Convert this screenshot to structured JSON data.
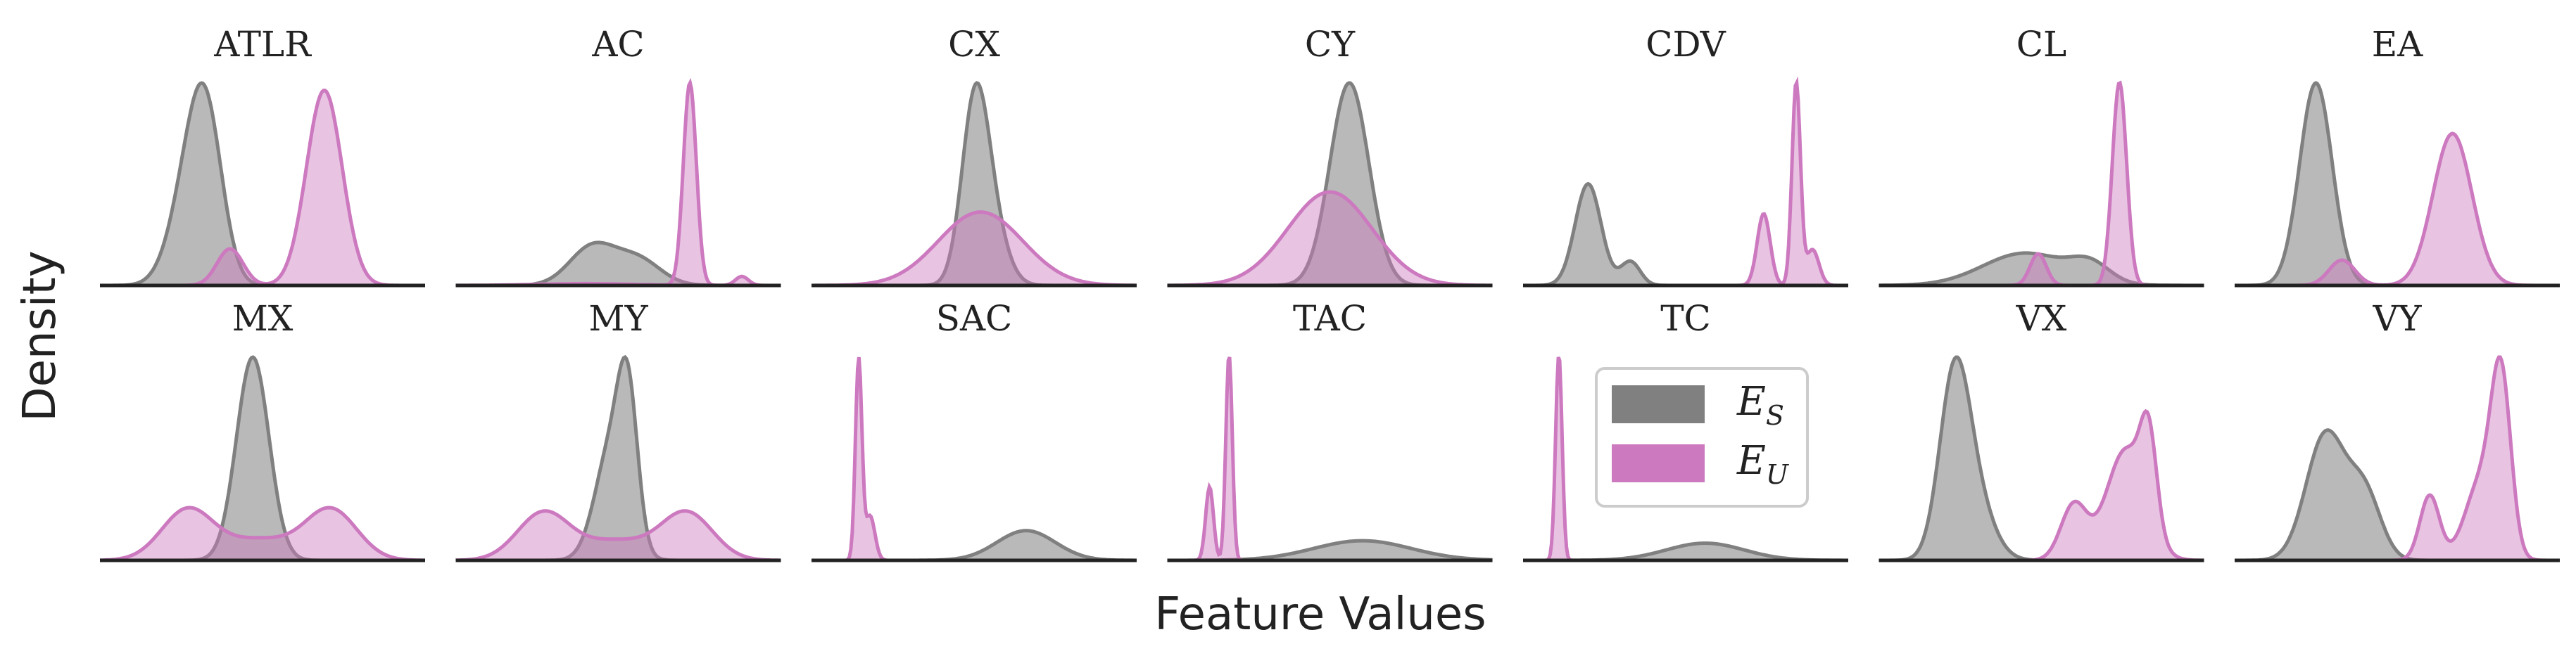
{
  "chart_data": {
    "type": "area",
    "xlabel": "Feature Values",
    "ylabel": "Density",
    "grid": false,
    "legend_placement": "inside panel TC, upper-right",
    "legend": [
      {
        "key": "S",
        "base": "E",
        "sub": "S",
        "color": "#808080"
      },
      {
        "key": "U",
        "base": "E",
        "sub": "U",
        "color": "#cc79bf"
      }
    ],
    "x_domain": [
      0,
      1
    ],
    "panels": [
      {
        "title": "ATLR",
        "S": [
          {
            "mu": 0.28,
            "sd": 0.06,
            "w": 0.5
          },
          {
            "mu": 0.33,
            "sd": 0.05,
            "w": 0.5
          }
        ],
        "U": [
          {
            "mu": 0.4,
            "sd": 0.04,
            "w": 0.12
          },
          {
            "mu": 0.69,
            "sd": 0.055,
            "w": 0.88
          }
        ]
      },
      {
        "title": "AC",
        "S": [
          {
            "mu": 0.42,
            "sd": 0.07,
            "w": 0.6
          },
          {
            "mu": 0.56,
            "sd": 0.07,
            "w": 0.4
          }
        ],
        "U": [
          {
            "mu": 0.72,
            "sd": 0.02,
            "w": 0.9
          },
          {
            "mu": 0.88,
            "sd": 0.02,
            "w": 0.04
          },
          {
            "mu": 0.4,
            "sd": 0.15,
            "w": 0.06
          }
        ]
      },
      {
        "title": "CX",
        "S": [
          {
            "mu": 0.5,
            "sd": 0.04,
            "w": 0.6
          },
          {
            "mu": 0.54,
            "sd": 0.05,
            "w": 0.4
          }
        ],
        "U": [
          {
            "mu": 0.52,
            "sd": 0.13,
            "w": 1.0
          }
        ]
      },
      {
        "title": "CY",
        "S": [
          {
            "mu": 0.56,
            "sd": 0.06,
            "w": 1.0
          }
        ],
        "U": [
          {
            "mu": 0.5,
            "sd": 0.13,
            "w": 1.0
          }
        ]
      },
      {
        "title": "CDV",
        "S": [
          {
            "mu": 0.2,
            "sd": 0.04,
            "w": 0.85
          },
          {
            "mu": 0.33,
            "sd": 0.03,
            "w": 0.15
          }
        ],
        "U": [
          {
            "mu": 0.74,
            "sd": 0.02,
            "w": 0.3
          },
          {
            "mu": 0.84,
            "sd": 0.013,
            "w": 0.55
          },
          {
            "mu": 0.89,
            "sd": 0.02,
            "w": 0.15
          }
        ]
      },
      {
        "title": "CL",
        "S": [
          {
            "mu": 0.45,
            "sd": 0.13,
            "w": 0.8
          },
          {
            "mu": 0.65,
            "sd": 0.06,
            "w": 0.2
          }
        ],
        "U": [
          {
            "mu": 0.49,
            "sd": 0.025,
            "w": 0.15
          },
          {
            "mu": 0.74,
            "sd": 0.022,
            "w": 0.85
          }
        ]
      },
      {
        "title": "EA",
        "S": [
          {
            "mu": 0.25,
            "sd": 0.05,
            "w": 1.0
          }
        ],
        "U": [
          {
            "mu": 0.33,
            "sd": 0.04,
            "w": 0.1
          },
          {
            "mu": 0.67,
            "sd": 0.06,
            "w": 0.9
          }
        ]
      },
      {
        "title": "MX",
        "S": [
          {
            "mu": 0.47,
            "sd": 0.05,
            "w": 1.0
          }
        ],
        "U": [
          {
            "mu": 0.27,
            "sd": 0.08,
            "w": 0.4
          },
          {
            "mu": 0.49,
            "sd": 0.1,
            "w": 0.2
          },
          {
            "mu": 0.71,
            "sd": 0.08,
            "w": 0.4
          }
        ]
      },
      {
        "title": "MY",
        "S": [
          {
            "mu": 0.48,
            "sd": 0.05,
            "w": 0.6
          },
          {
            "mu": 0.53,
            "sd": 0.03,
            "w": 0.4
          }
        ],
        "U": [
          {
            "mu": 0.27,
            "sd": 0.08,
            "w": 0.4
          },
          {
            "mu": 0.49,
            "sd": 0.1,
            "w": 0.2
          },
          {
            "mu": 0.71,
            "sd": 0.08,
            "w": 0.4
          }
        ]
      },
      {
        "title": "SAC",
        "S": [
          {
            "mu": 0.66,
            "sd": 0.09,
            "w": 1.0
          }
        ],
        "U": [
          {
            "mu": 0.145,
            "sd": 0.01,
            "w": 0.75
          },
          {
            "mu": 0.18,
            "sd": 0.015,
            "w": 0.25
          }
        ]
      },
      {
        "title": "TAC",
        "S": [
          {
            "mu": 0.6,
            "sd": 0.15,
            "w": 1.0
          }
        ],
        "U": [
          {
            "mu": 0.13,
            "sd": 0.012,
            "w": 0.3
          },
          {
            "mu": 0.19,
            "sd": 0.01,
            "w": 0.7
          }
        ]
      },
      {
        "title": "TC",
        "S": [
          {
            "mu": 0.56,
            "sd": 0.12,
            "w": 1.0
          }
        ],
        "U": [
          {
            "mu": 0.11,
            "sd": 0.01,
            "w": 1.0
          }
        ]
      },
      {
        "title": "VX",
        "S": [
          {
            "mu": 0.23,
            "sd": 0.045,
            "w": 0.6
          },
          {
            "mu": 0.28,
            "sd": 0.06,
            "w": 0.4
          }
        ],
        "U": [
          {
            "mu": 0.6,
            "sd": 0.04,
            "w": 0.2
          },
          {
            "mu": 0.76,
            "sd": 0.06,
            "w": 0.6
          },
          {
            "mu": 0.83,
            "sd": 0.025,
            "w": 0.2
          }
        ]
      },
      {
        "title": "VY",
        "S": [
          {
            "mu": 0.28,
            "sd": 0.06,
            "w": 0.7
          },
          {
            "mu": 0.4,
            "sd": 0.05,
            "w": 0.3
          }
        ],
        "U": [
          {
            "mu": 0.6,
            "sd": 0.03,
            "w": 0.18
          },
          {
            "mu": 0.76,
            "sd": 0.05,
            "w": 0.37
          },
          {
            "mu": 0.82,
            "sd": 0.03,
            "w": 0.45
          }
        ]
      }
    ]
  }
}
